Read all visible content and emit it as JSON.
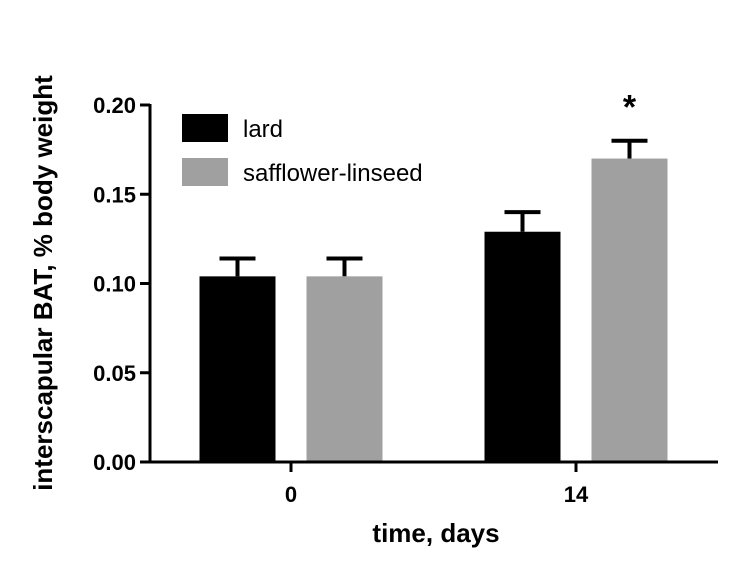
{
  "chart_data": {
    "type": "bar",
    "categories": [
      "0",
      "14"
    ],
    "series": [
      {
        "name": "lard",
        "color": "#000000",
        "values": [
          0.104,
          0.129
        ],
        "errors": [
          0.01,
          0.011
        ]
      },
      {
        "name": "safflower-linseed",
        "color": "#a0a0a0",
        "values": [
          0.104,
          0.17
        ],
        "errors": [
          0.01,
          0.01
        ]
      }
    ],
    "xlabel": "time, days",
    "ylabel": "interscapular BAT, % body weight",
    "ylim": [
      0,
      0.2
    ],
    "yticks": [
      "0.00",
      "0.05",
      "0.10",
      "0.15",
      "0.20"
    ],
    "annotations": [
      {
        "text": "*",
        "category": "14",
        "series": "safflower-linseed"
      }
    ],
    "legend_position": "top-left",
    "grid": false
  }
}
